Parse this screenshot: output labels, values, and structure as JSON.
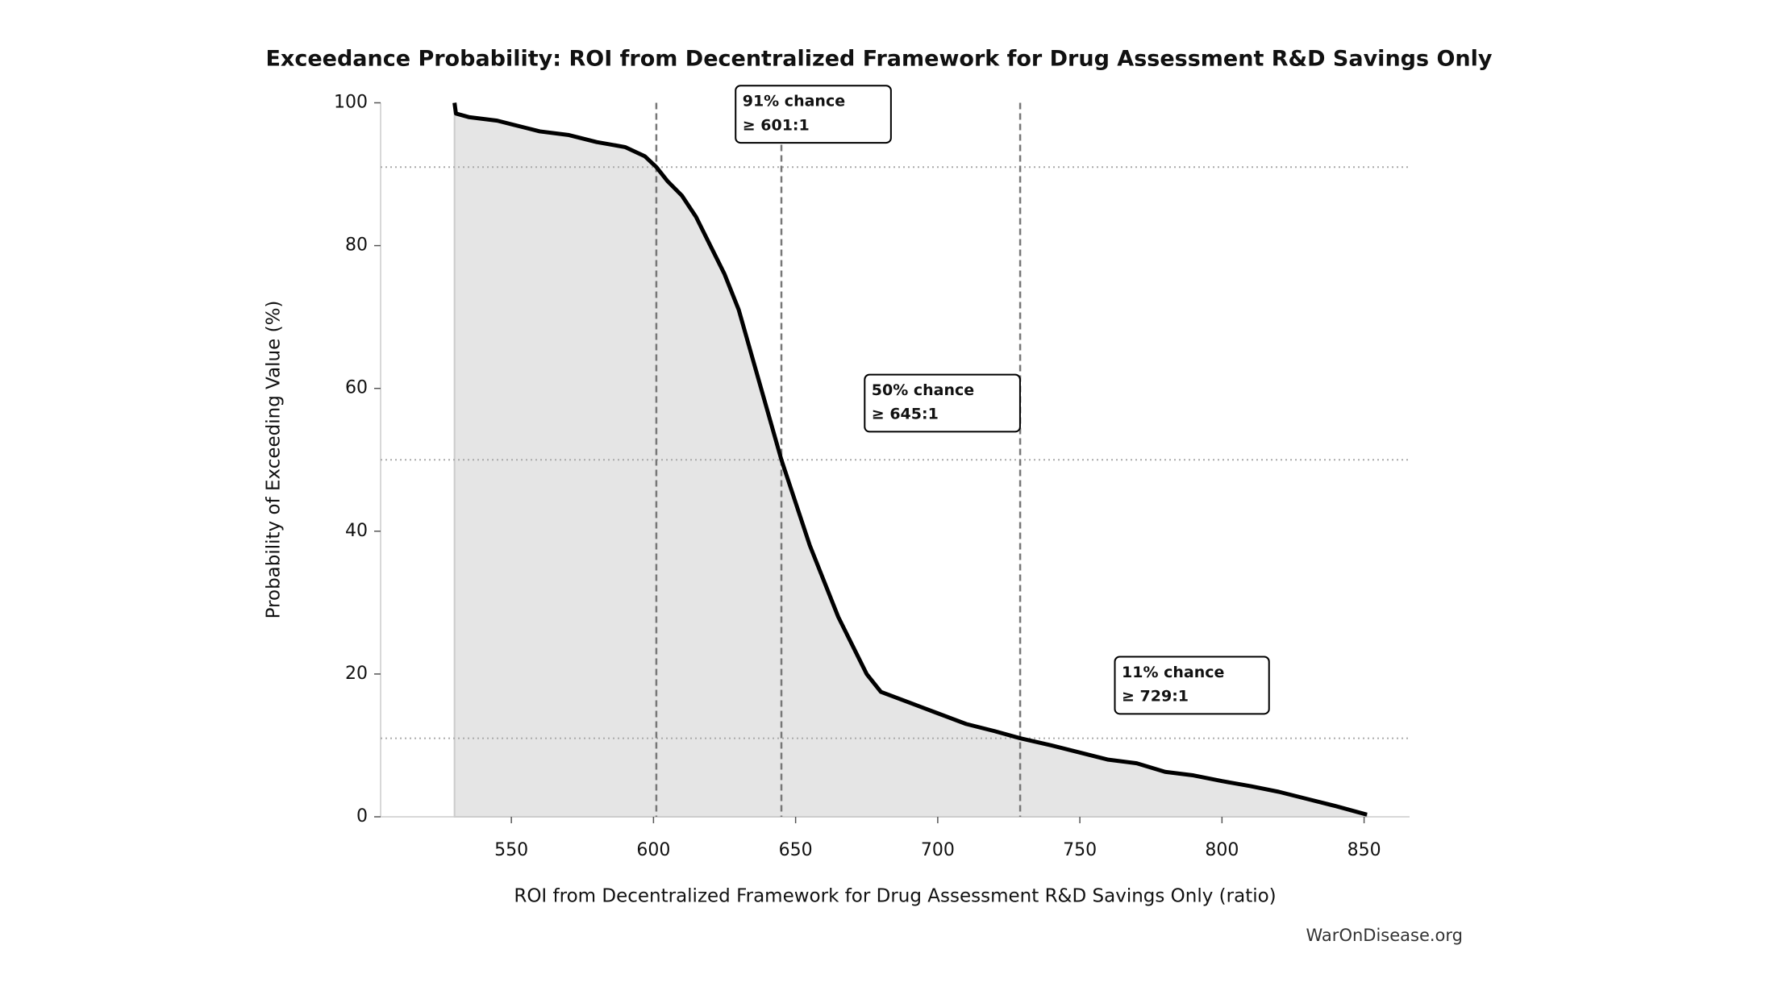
{
  "chart_data": {
    "type": "exceedance",
    "title": "Exceedance Probability: ROI from Decentralized Framework for Drug Assessment R&D Savings Only",
    "x_label": "ROI from Decentralized Framework for Drug Assessment R&D Savings Only (ratio)",
    "y_label": "Probability of Exceeding Value (%)",
    "watermark": "WarOnDisease.org",
    "xlim": [
      504,
      866
    ],
    "ylim": [
      0,
      100
    ],
    "xticks": [
      550,
      600,
      650,
      700,
      750,
      800,
      850
    ],
    "yticks": [
      0,
      20,
      40,
      60,
      80,
      100
    ],
    "color": "#000000",
    "fill_color": "#e5e5e5",
    "x": [
      530,
      530.5,
      535,
      545,
      555,
      560,
      570,
      580,
      590,
      597,
      601,
      605,
      610,
      615,
      620,
      625,
      630,
      635,
      640,
      645,
      650,
      655,
      660,
      665,
      670,
      675,
      680,
      690,
      700,
      710,
      720,
      729,
      740,
      750,
      760,
      770,
      780,
      790,
      800,
      810,
      820,
      830,
      840,
      851
    ],
    "values": [
      100,
      98.5,
      98,
      97.5,
      96.5,
      96,
      95.5,
      94.5,
      93.8,
      92.5,
      91,
      89,
      87,
      84,
      80,
      76,
      71,
      64,
      57,
      50,
      44,
      38,
      33,
      28,
      24,
      20,
      17.5,
      16,
      14.5,
      13,
      12,
      11,
      10,
      9,
      8,
      7.5,
      6.3,
      5.8,
      5,
      4.3,
      3.5,
      2.5,
      1.5,
      0.3
    ],
    "hlines": [
      91,
      50,
      11
    ],
    "vlines": [
      601,
      645,
      729
    ],
    "annotations": [
      {
        "lines": [
          "91% chance",
          "≥ 601:1"
        ]
      },
      {
        "lines": [
          "50% chance",
          "≥ 645:1"
        ]
      },
      {
        "lines": [
          "11% chance",
          "≥ 729:1"
        ]
      }
    ]
  }
}
